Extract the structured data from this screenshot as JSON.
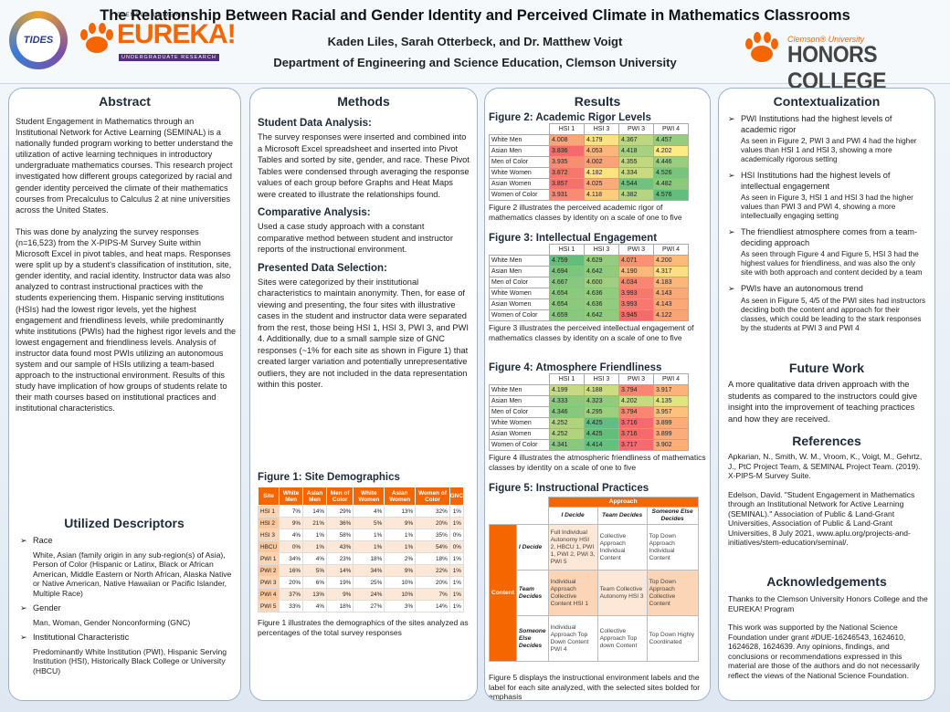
{
  "header": {
    "title": "The Relationship Between Racial and Gender Identity and Perceived Climate in Mathematics Classrooms",
    "authors": "Kaden Liles, Sarah Otterbeck, and Dr. Matthew Voigt",
    "dept": "Department of Engineering and Science Education, Clemson University"
  },
  "logos": {
    "tides": "TIDES",
    "eureka_top": "CLEMSON UNIVERSITY",
    "eureka": "EUREKA!",
    "eureka_sub": "UNDERGRADUATE RESEARCH",
    "honors_top": "Clemson® University",
    "honors": "HONORS COLLEGE"
  },
  "colors": {
    "orange": "#f56600",
    "purple": "#522d80"
  },
  "abstract": {
    "heading": "Abstract",
    "text": "Student Engagement in Mathematics through an Institutional Network for Active Learning (SEMINAL) is a nationally funded program working to better understand the utilization of active learning techniques in introductory undergraduate mathematics courses. This research project investigated how different groups categorized by racial and gender identity perceived the climate of their mathematics courses from Precalculus to Calculus 2 at nine universities across the United States.",
    "text2": "This was done by analyzing the survey responses (n=16,523) from the X-PIPS-M Survey Suite within Microsoft Excel in pivot tables, and heat maps. Responses were split up by a student's classification of institution, site, gender identity, and racial identity. Instructor data was also analyzed to contrast instructional practices with the students experiencing them. Hispanic serving institutions (HSIs) had the lowest rigor levels, yet the highest engagement and friendliness levels, while predominantly white institutions (PWIs) had the highest rigor levels and the lowest engagement and friendliness levels. Analysis of instructor data found most PWIs utilizing an autonomous system and our sample of HSIs utilizing a team-based approach to the instructional environment. Results of this study have implication of how groups of students relate to their math courses based on institutional practices and institutional characteristics."
  },
  "descriptors": {
    "heading": "Utilized Descriptors",
    "items": [
      {
        "label": "Race",
        "text": "White, Asian (family origin in any sub-region(s) of Asia), Person of Color (Hispanic or Latinx, Black or African American, Middle Eastern or North African, Alaska Native or Native American, Native Hawaiian or Pacific Islander, Multiple Race)"
      },
      {
        "label": "Gender",
        "text": "Man, Woman, Gender Nonconforming (GNC)"
      },
      {
        "label": "Institutional Characteristic",
        "text": "Predominantly White Institution (PWI), Hispanic Serving Institution (HSI), Historically Black College or University (HBCU)"
      }
    ]
  },
  "methods": {
    "heading": "Methods",
    "s1h": "Student Data Analysis:",
    "s1": "The survey responses were inserted and combined into a Microsoft Excel spreadsheet and inserted into Pivot Tables and sorted by site, gender, and race. These Pivot Tables were condensed through averaging the response values of each group before Graphs and Heat Maps were created to illustrate the relationships found.",
    "s2h": "Comparative Analysis:",
    "s2": "Used a case study approach with a constant comparative method between student and instructor reports of the instructional environment.",
    "s3h": "Presented Data Selection:",
    "s3": "Sites were categorized by their institutional characteristics to maintain anonymity. Then, for ease of viewing and presenting, the four sites with illustrative cases in the student and instructor data were separated from the rest, those being HSI 1, HSI 3, PWI 3, and PWI 4. Additionally, due to a small sample size of GNC responses (~1% for each site as shown in Figure 1) that created larger variation and potentially unrepresentative outliers, they are not included in the data representation within this poster."
  },
  "fig1": {
    "title": "Figure 1: Site Demographics",
    "cols": [
      "Site",
      "White Men",
      "Asian Men",
      "Men of Color",
      "White Women",
      "Asian Women",
      "Women of Color",
      "GNC"
    ],
    "rows": [
      [
        "HSI 1",
        "7%",
        "14%",
        "29%",
        "4%",
        "13%",
        "32%",
        "1%"
      ],
      [
        "HSI 2",
        "9%",
        "21%",
        "36%",
        "5%",
        "9%",
        "20%",
        "1%"
      ],
      [
        "HSI 3",
        "4%",
        "1%",
        "58%",
        "1%",
        "1%",
        "35%",
        "0%"
      ],
      [
        "HBCU",
        "0%",
        "1%",
        "43%",
        "1%",
        "1%",
        "54%",
        "0%"
      ],
      [
        "PWI 1",
        "34%",
        "4%",
        "23%",
        "18%",
        "2%",
        "18%",
        "1%"
      ],
      [
        "PWI 2",
        "16%",
        "5%",
        "14%",
        "34%",
        "9%",
        "22%",
        "1%"
      ],
      [
        "PWI 3",
        "20%",
        "6%",
        "19%",
        "25%",
        "10%",
        "20%",
        "1%"
      ],
      [
        "PWI 4",
        "37%",
        "13%",
        "9%",
        "24%",
        "10%",
        "7%",
        "1%"
      ],
      [
        "PWI 5",
        "33%",
        "4%",
        "18%",
        "27%",
        "3%",
        "14%",
        "1%"
      ]
    ],
    "caption": "Figure 1 illustrates the demographics of the sites analyzed as percentages of the total survey responses"
  },
  "results": {
    "heading": "Results"
  },
  "heat_cols": [
    "HSI 1",
    "HSI 3",
    "PWI 3",
    "PWI 4"
  ],
  "heat_rows": [
    "White Men",
    "Asian Men",
    "Men of Color",
    "White Women",
    "Asian Women",
    "Women of Color"
  ],
  "fig2": {
    "title": "Figure 2: Academic Rigor Levels",
    "values": [
      [
        "4.008",
        "4.179",
        "4.367",
        "4.457"
      ],
      [
        "3.836",
        "4.053",
        "4.418",
        "4.202"
      ],
      [
        "3.935",
        "4.002",
        "4.355",
        "4.446"
      ],
      [
        "3.872",
        "4.182",
        "4.334",
        "4.526"
      ],
      [
        "3.857",
        "4.025",
        "4.544",
        "4.482"
      ],
      [
        "3.931",
        "4.118",
        "4.382",
        "4.576"
      ]
    ],
    "caption": "Figure 2 illustrates the perceived academic rigor of mathematics classes by identity on a scale of one to five"
  },
  "fig3": {
    "title": "Figure 3: Intellectual Engagement",
    "values": [
      [
        "4.759",
        "4.629",
        "4.071",
        "4.200"
      ],
      [
        "4.694",
        "4.642",
        "4.190",
        "4.317"
      ],
      [
        "4.667",
        "4.600",
        "4.034",
        "4.183"
      ],
      [
        "4.654",
        "4.636",
        "3.993",
        "4.143"
      ],
      [
        "4.654",
        "4.636",
        "3.993",
        "4.143"
      ],
      [
        "4.659",
        "4.642",
        "3.945",
        "4.122"
      ]
    ],
    "caption": "Figure 3 illustrates the perceived intellectual engagement of mathematics classes by identity on a scale of one to five"
  },
  "fig4": {
    "title": "Figure 4: Atmosphere Friendliness",
    "values": [
      [
        "4.199",
        "4.188",
        "3.794",
        "3.917"
      ],
      [
        "4.333",
        "4.323",
        "4.202",
        "4.135"
      ],
      [
        "4.346",
        "4.295",
        "3.794",
        "3.957"
      ],
      [
        "4.252",
        "4.425",
        "3.716",
        "3.899"
      ],
      [
        "4.252",
        "4.425",
        "3.716",
        "3.899"
      ],
      [
        "4.341",
        "4.414",
        "3.717",
        "3.902"
      ]
    ],
    "caption": "Figure 4 illustrates the atmospheric friendliness of mathematics classes by identity on a scale of one to five"
  },
  "fig5": {
    "title": "Figure 5: Instructional Practices",
    "approach": "Approach",
    "content": "Content",
    "cols": [
      "I Decide",
      "Team Decides",
      "Someone Else Decides"
    ],
    "rows": [
      "I Decide",
      "Team Decides",
      "Someone Else Decides"
    ],
    "cells": [
      [
        "Full Individual Autonomy HSI 2, HBCU 1, PWI 1, PWI 2, PWI 3, PWI 5",
        "Collective Approach Individual Content",
        "Top Down Approach Individual Content"
      ],
      [
        "Individual Approach Collective Content HSI 1",
        "Team Collective Autonomy HSI 3",
        "Top Down Approach Collective Content"
      ],
      [
        "Individual Approach Top Down Content PWI 4",
        "Collective Approach Top down Content",
        "Top Down Highly Coordinated"
      ]
    ],
    "caption": "Figure 5 displays the instructional environment labels and the label for each site analyzed, with the selected sites bolded for emphasis"
  },
  "context": {
    "heading": "Contextualization",
    "items": [
      {
        "b": "PWI Institutions had the highest levels of academic rigor",
        "s": "As seen in Figure 2, PWI 3 and PWI 4 had the higher values than HSI 1 and HSI 3, showing a more academically rigorous setting"
      },
      {
        "b": "HSI Institutions had the highest levels of intellectual engagement",
        "s": "As seen in Figure 3, HSI 1 and HSI 3 had the higher values than PWI 3 and PWI 4, showing a more intellectually engaging setting"
      },
      {
        "b": "The friendliest atmosphere comes from a team-deciding approach",
        "s": "As seen through Figure 4 and Figure 5, HSI 3 had the highest values for friendliness, and was also the only site with both approach and content decided by a team"
      },
      {
        "b": "PWIs have an autonomous trend",
        "s": "As seen in Figure 5, 4/5 of the PWI sites had instructors deciding both the content and approach for their classes, which could be leading to the stark responses by the students at PWI 3 and PWI 4"
      }
    ]
  },
  "future": {
    "heading": "Future Work",
    "text": "A more qualitative data driven approach with the students as compared to the instructors could give insight into the improvement of teaching practices and how they are received."
  },
  "refs": {
    "heading": "References",
    "r1": "Apkarian, N., Smith, W. M., Vroom, K., Voigt, M., Gehrtz, J., PtC Project Team, & SEMINAL Project Team. (2019). X-PIPS-M Survey Suite.",
    "r2": "Edelson, David. \"Student Engagement in Mathematics through an Institutional Network for Active Learning (SEMINAL).\" Association of Public & Land-Grant Universities, Association of Public & Land-Grant Universities, 8 July 2021, www.aplu.org/projects-and-initiatives/stem-education/seminal/."
  },
  "ack": {
    "heading": "Acknowledgements",
    "t1": "Thanks to the Clemson University Honors College and the EUREKA! Program",
    "t2": "This work was supported by the National Science Foundation under grant #DUE-16246543, 1624610, 1624628, 1624639. Any opinions, findings, and conclusions or recommendations expressed in this material are those of the authors and do not necessarily reflect the views of the National Science Foundation."
  }
}
